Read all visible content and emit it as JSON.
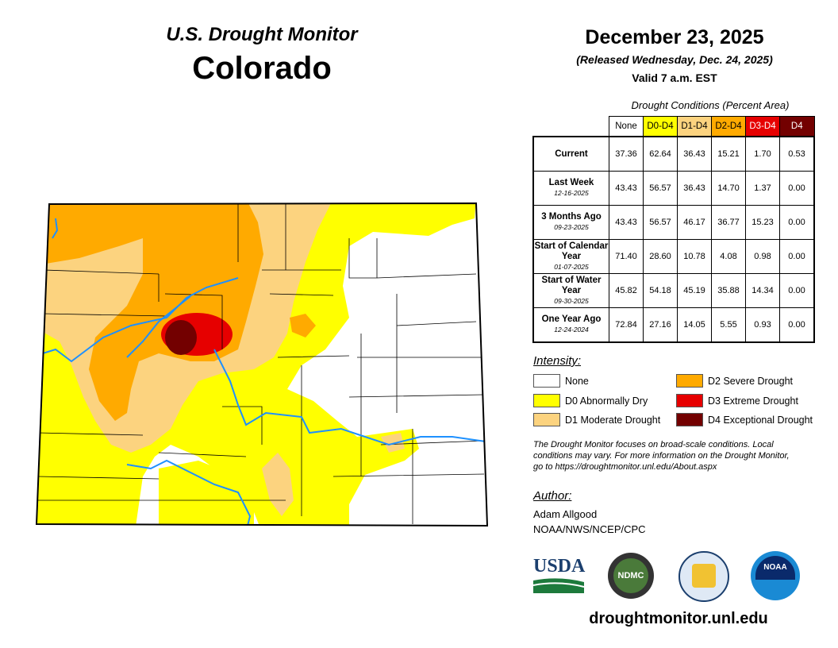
{
  "title": "U.S. Drought Monitor",
  "state": "Colorado",
  "date": "December 23, 2025",
  "released": "(Released Wednesday, Dec. 24, 2025)",
  "valid": "Valid 7 a.m. EST",
  "table": {
    "caption": "Drought Conditions (Percent Area)",
    "columns": [
      {
        "label": "None",
        "color": "#ffffff",
        "text": "#000"
      },
      {
        "label": "D0-D4",
        "color": "#ffff00",
        "text": "#000"
      },
      {
        "label": "D1-D4",
        "color": "#fcd37f",
        "text": "#000"
      },
      {
        "label": "D2-D4",
        "color": "#ffaa00",
        "text": "#000"
      },
      {
        "label": "D3-D4",
        "color": "#e60000",
        "text": "#fff"
      },
      {
        "label": "D4",
        "color": "#730000",
        "text": "#fff"
      }
    ],
    "rows": [
      {
        "label": "Current",
        "date": "",
        "values": [
          "37.36",
          "62.64",
          "36.43",
          "15.21",
          "1.70",
          "0.53"
        ]
      },
      {
        "label": "Last Week",
        "date": "12-16-2025",
        "values": [
          "43.43",
          "56.57",
          "36.43",
          "14.70",
          "1.37",
          "0.00"
        ]
      },
      {
        "label": "3 Months Ago",
        "date": "09-23-2025",
        "values": [
          "43.43",
          "56.57",
          "46.17",
          "36.77",
          "15.23",
          "0.00"
        ]
      },
      {
        "label": "Start of Calendar Year",
        "date": "01-07-2025",
        "values": [
          "71.40",
          "28.60",
          "10.78",
          "4.08",
          "0.98",
          "0.00"
        ]
      },
      {
        "label": "Start of Water Year",
        "date": "09-30-2025",
        "values": [
          "45.82",
          "54.18",
          "45.19",
          "35.88",
          "14.34",
          "0.00"
        ]
      },
      {
        "label": "One Year Ago",
        "date": "12-24-2024",
        "values": [
          "72.84",
          "27.16",
          "14.05",
          "5.55",
          "0.93",
          "0.00"
        ]
      }
    ]
  },
  "legend": {
    "heading": "Intensity:",
    "items": [
      {
        "label": "None",
        "color": "#ffffff"
      },
      {
        "label": "D0 Abnormally Dry",
        "color": "#ffff00"
      },
      {
        "label": "D1 Moderate Drought",
        "color": "#fcd37f"
      },
      {
        "label": "D2 Severe Drought",
        "color": "#ffaa00"
      },
      {
        "label": "D3 Extreme Drought",
        "color": "#e60000"
      },
      {
        "label": "D4 Exceptional Drought",
        "color": "#730000"
      }
    ]
  },
  "note": "The Drought Monitor focuses on broad-scale conditions. Local conditions may vary. For more information on the Drought Monitor, go to https://droughtmonitor.unl.edu/About.aspx",
  "author": {
    "heading": "Author:",
    "name": "Adam Allgood",
    "org": "NOAA/NWS/NCEP/CPC"
  },
  "logos": {
    "usda": "USDA",
    "ndmc": "NDMC",
    "noaa": "NOAA"
  },
  "url": "droughtmonitor.unl.edu"
}
